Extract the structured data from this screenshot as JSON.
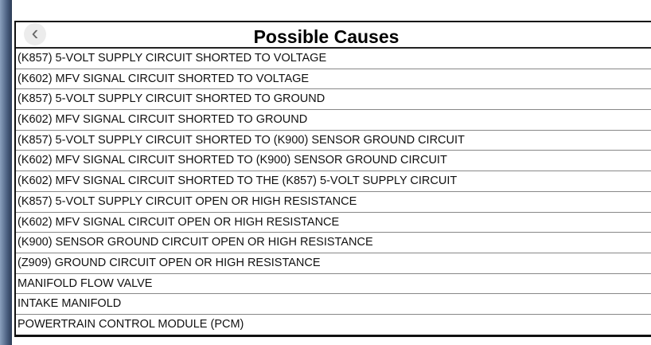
{
  "table": {
    "title": "Possible Causes",
    "rows": [
      "(K857) 5-VOLT SUPPLY CIRCUIT SHORTED TO VOLTAGE",
      "(K602) MFV SIGNAL CIRCUIT SHORTED TO VOLTAGE",
      "(K857) 5-VOLT SUPPLY CIRCUIT SHORTED TO GROUND",
      "(K602) MFV SIGNAL CIRCUIT SHORTED TO GROUND",
      "(K857) 5-VOLT SUPPLY CIRCUIT SHORTED TO (K900) SENSOR GROUND CIRCUIT",
      "(K602) MFV SIGNAL CIRCUIT SHORTED TO (K900) SENSOR GROUND CIRCUIT",
      "(K602) MFV SIGNAL CIRCUIT SHORTED TO THE (K857) 5-VOLT SUPPLY CIRCUIT",
      "(K857) 5-VOLT SUPPLY CIRCUIT OPEN OR HIGH RESISTANCE",
      "(K602) MFV SIGNAL CIRCUIT OPEN OR HIGH RESISTANCE",
      "(K900) SENSOR GROUND CIRCUIT OPEN OR HIGH RESISTANCE",
      "(Z909) GROUND CIRCUIT OPEN OR HIGH RESISTANCE",
      "MANIFOLD FLOW VALVE",
      "INTAKE MANIFOLD",
      "POWERTRAIN CONTROL MODULE (PCM)"
    ]
  },
  "nav": {
    "icon": "chevron-left-icon",
    "glyph": "‹"
  }
}
